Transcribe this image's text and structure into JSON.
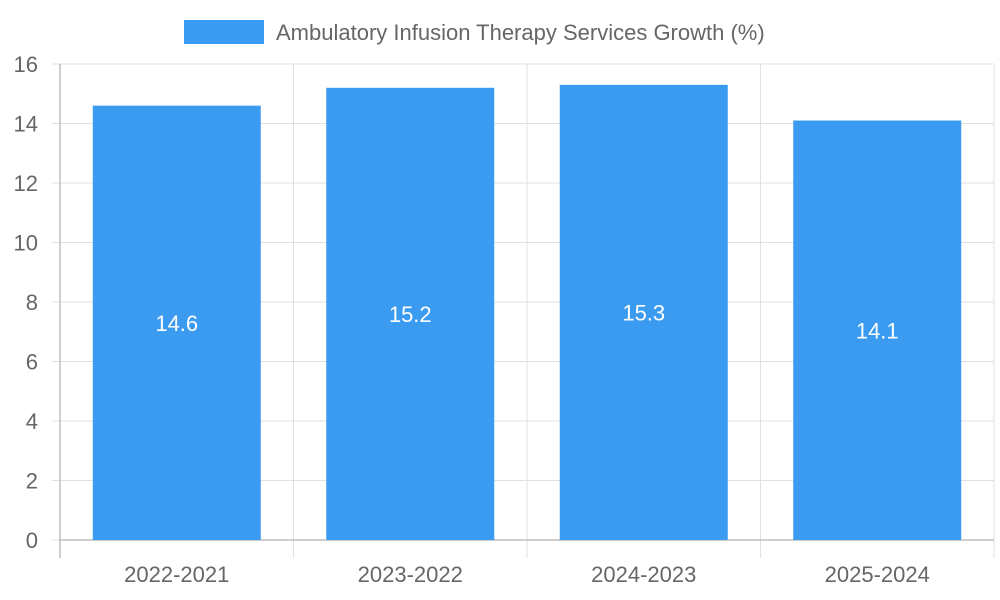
{
  "chart_data": {
    "type": "bar",
    "legend_position": "top",
    "grid": true,
    "categories": [
      "2022-2021",
      "2023-2022",
      "2024-2023",
      "2025-2024"
    ],
    "series": [
      {
        "name": "Ambulatory Infusion Therapy Services Growth (%)",
        "color": "#3a9bf0",
        "values": [
          14.6,
          15.2,
          15.3,
          14.1
        ]
      }
    ],
    "ylim": [
      0,
      16
    ],
    "yticks": [
      0,
      2,
      4,
      6,
      8,
      10,
      12,
      14,
      16
    ],
    "data_labels": [
      "14.6",
      "15.2",
      "15.3",
      "14.1"
    ],
    "colors": {
      "bar": "#3a9bf0",
      "grid": "#e0e0e0",
      "axis": "#bdbdbd",
      "text": "#666666",
      "label": "#ffffff"
    }
  }
}
